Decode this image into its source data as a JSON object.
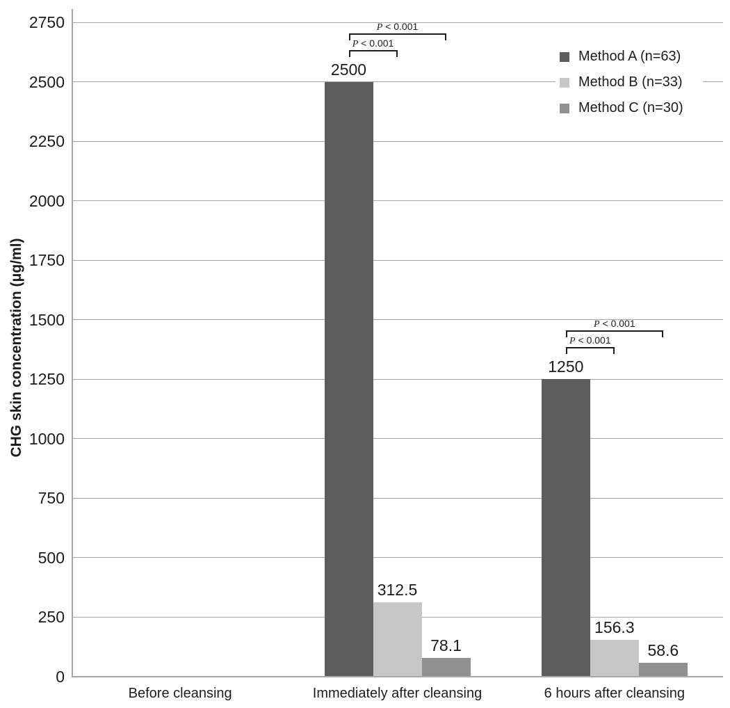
{
  "chart_data": {
    "type": "bar",
    "title": "",
    "ylabel": "CHG skin concentration (μg/ml)",
    "xlabel": "",
    "categories": [
      "Before cleansing",
      "Immediately after cleansing",
      "6 hours after cleansing"
    ],
    "series": [
      {
        "name": "Method A (n=63)",
        "color": "#5e5e5e",
        "values": [
          null,
          2500,
          1250
        ]
      },
      {
        "name": "Method B (n=33)",
        "color": "#c7c7c7",
        "values": [
          null,
          312.5,
          156.3
        ]
      },
      {
        "name": "Method C (n=30)",
        "color": "#909090",
        "values": [
          null,
          78.1,
          58.6
        ]
      }
    ],
    "data_labels": [
      [
        null,
        "2500",
        "1250"
      ],
      [
        null,
        "312.5",
        "156.3"
      ],
      [
        null,
        "78.1",
        "58.6"
      ]
    ],
    "ylim": [
      0,
      2750
    ],
    "ytick_step": 250,
    "grid": true,
    "legend_position": "top-right",
    "annotations": [
      {
        "category_index": 1,
        "brackets": [
          {
            "label": "P < 0.001",
            "from_series": 0,
            "to_series": 1,
            "level": 1
          },
          {
            "label": "P < 0.001",
            "from_series": 0,
            "to_series": 2,
            "level": 2
          }
        ]
      },
      {
        "category_index": 2,
        "brackets": [
          {
            "label": "P < 0.001",
            "from_series": 0,
            "to_series": 1,
            "level": 1
          },
          {
            "label": "P < 0.001",
            "from_series": 0,
            "to_series": 2,
            "level": 2
          }
        ]
      }
    ],
    "colors": {
      "gridline": "#a6a6a6",
      "axis": "#a6a6a6",
      "text": "#1c1c1c"
    }
  }
}
